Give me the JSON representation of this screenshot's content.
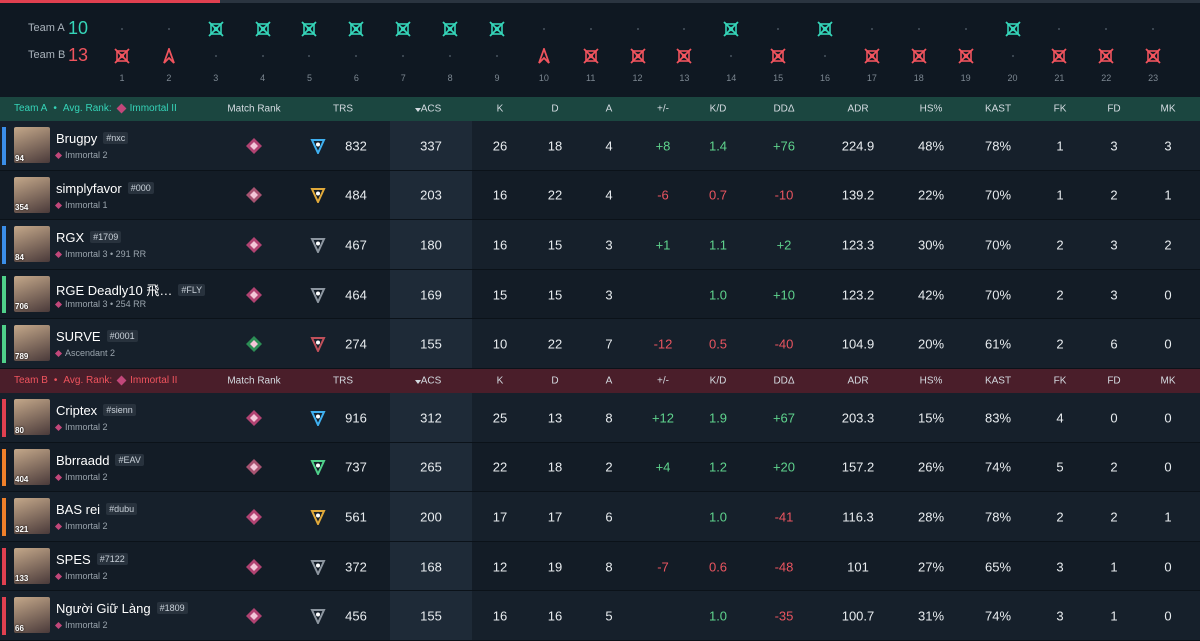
{
  "timeline": {
    "rounds": [
      1,
      2,
      3,
      4,
      5,
      6,
      7,
      8,
      9,
      10,
      11,
      12,
      13,
      14,
      15,
      16,
      17,
      18,
      19,
      20,
      21,
      22,
      23
    ],
    "teams": [
      {
        "name": "Team A",
        "score": 10,
        "color": "#35d4b8",
        "rounds_won": [
          3,
          4,
          5,
          6,
          7,
          8,
          9,
          14,
          16,
          20
        ]
      },
      {
        "name": "Team B",
        "score": 13,
        "color": "#f0545e",
        "rounds_won": [
          1,
          2,
          10,
          11,
          12,
          13,
          15,
          17,
          18,
          19,
          21,
          22,
          23
        ],
        "detonation_rounds": [
          2,
          10
        ]
      }
    ]
  },
  "table": {
    "columns": [
      "Match Rank",
      "TRS",
      "ACS",
      "K",
      "D",
      "A",
      "+/-",
      "K/D",
      "DDΔ",
      "ADR",
      "HS%",
      "KAST",
      "FK",
      "FD",
      "MK"
    ],
    "teams": [
      {
        "name": "Team A",
        "avg_rank_label": "Avg. Rank:",
        "avg_rank": "Immortal II",
        "color": "#35d4b8",
        "header_color": "#1b4640",
        "players": [
          {
            "name": "Brugpy",
            "tag": "#nxc",
            "rank": "Immortal 2",
            "level": 94,
            "party_color": "#3b8ee8",
            "rank_color": "#c2477a",
            "trs_color": "#3fb0f0",
            "stats": [
              832,
              337,
              26,
              18,
              4,
              "+8",
              1.4,
              "+76",
              224.9,
              "48%",
              "78%",
              1,
              3,
              3
            ]
          },
          {
            "name": "simplyfavor",
            "tag": "#000",
            "rank": "Immortal 1",
            "level": 354,
            "party_color": null,
            "rank_color": "#b85a7a",
            "trs_color": "#e0a93a",
            "stats": [
              484,
              203,
              16,
              22,
              4,
              "-6",
              0.7,
              "-10",
              139.2,
              "22%",
              "70%",
              1,
              2,
              1
            ]
          },
          {
            "name": "RGX",
            "tag": "#1709",
            "rank": "Immortal 3 • 291 RR",
            "level": 84,
            "party_color": "#3b8ee8",
            "rank_color": "#c2477a",
            "trs_color": "#8d96a0",
            "stats": [
              467,
              180,
              16,
              15,
              3,
              "+1",
              1.1,
              "+2",
              123.3,
              "30%",
              "70%",
              2,
              3,
              2
            ]
          },
          {
            "name": "RGE Deadly10 飛…",
            "tag": "#FLY",
            "rank": "Immortal 3 • 254 RR",
            "level": 706,
            "party_color": "#4fd08a",
            "rank_color": "#c2477a",
            "trs_color": "#8d96a0",
            "stats": [
              464,
              169,
              15,
              15,
              3,
              null,
              "1.0",
              "+10",
              123.2,
              "42%",
              "70%",
              2,
              3,
              0
            ]
          },
          {
            "name": "SURVE",
            "tag": "#0001",
            "rank": "Ascendant 2",
            "level": 789,
            "party_color": "#4fd08a",
            "rank_color": "#2f9a5a",
            "trs_color": "#c0505a",
            "stats": [
              274,
              155,
              10,
              22,
              7,
              "-12",
              0.5,
              "-40",
              104.9,
              "20%",
              "61%",
              2,
              6,
              0
            ]
          }
        ]
      },
      {
        "name": "Team B",
        "avg_rank_label": "Avg. Rank:",
        "avg_rank": "Immortal II",
        "color": "#f0545e",
        "header_color": "#4a1e2a",
        "players": [
          {
            "name": "Criptex",
            "tag": "#sienn",
            "rank": "Immortal 2",
            "level": 80,
            "party_color": "#e04050",
            "rank_color": "#c2477a",
            "trs_color": "#3fb0f0",
            "stats": [
              916,
              312,
              25,
              13,
              8,
              "+12",
              1.9,
              "+67",
              203.3,
              "15%",
              "83%",
              4,
              0,
              0
            ]
          },
          {
            "name": "Bbrraadd",
            "tag": "#EAV",
            "rank": "Immortal 2",
            "level": 404,
            "party_color": "#f0802a",
            "rank_color": "#b85a7a",
            "trs_color": "#4fd08a",
            "stats": [
              737,
              265,
              22,
              18,
              2,
              "+4",
              1.2,
              "+20",
              157.2,
              "26%",
              "74%",
              5,
              2,
              0
            ]
          },
          {
            "name": "BAS rei",
            "tag": "#dubu",
            "rank": "Immortal 2",
            "level": 321,
            "party_color": "#f0802a",
            "rank_color": "#c2477a",
            "trs_color": "#e0a93a",
            "stats": [
              561,
              200,
              17,
              17,
              6,
              null,
              "1.0",
              "-41",
              116.3,
              "28%",
              "78%",
              2,
              2,
              1
            ]
          },
          {
            "name": "SPES",
            "tag": "#7122",
            "rank": "Immortal 2",
            "level": 133,
            "party_color": "#e04050",
            "rank_color": "#c2477a",
            "trs_color": "#8d96a0",
            "stats": [
              372,
              168,
              12,
              19,
              8,
              "-7",
              0.6,
              "-48",
              101.0,
              "27%",
              "65%",
              3,
              1,
              0
            ]
          },
          {
            "name": "Người Giữ Làng",
            "tag": "#1809",
            "rank": "Immortal 2",
            "level": 66,
            "party_color": "#e04050",
            "rank_color": "#c2477a",
            "trs_color": "#8d96a0",
            "stats": [
              456,
              155,
              16,
              16,
              5,
              null,
              "1.0",
              "-35",
              100.7,
              "31%",
              "74%",
              3,
              1,
              0
            ]
          }
        ]
      }
    ]
  }
}
